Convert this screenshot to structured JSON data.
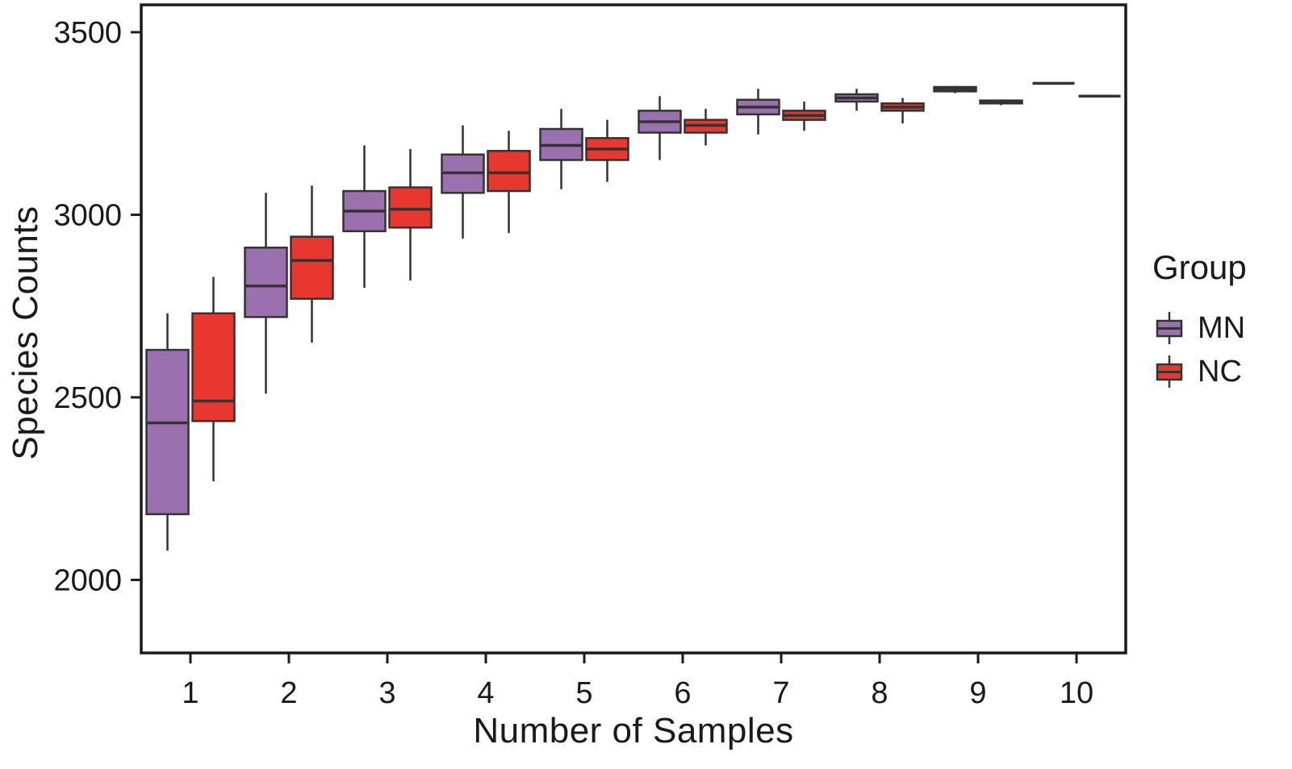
{
  "chart_data": {
    "type": "boxplot",
    "title": "",
    "xlabel": "Number of Samples",
    "ylabel": "Species Counts",
    "legend_title": "Group",
    "legend_position": "right",
    "grid": false,
    "x_categories": [
      "1",
      "2",
      "3",
      "4",
      "5",
      "6",
      "7",
      "8",
      "9",
      "10"
    ],
    "y_ticks": [
      2000,
      2500,
      3000,
      3500
    ],
    "ylim": [
      1800,
      3575
    ],
    "panel_border_color": "#1a1a1a",
    "box_stroke_color": "#333333",
    "text_color": "#1a1a1a",
    "series": [
      {
        "name": "MN",
        "color": "#9A70AE",
        "boxes": [
          {
            "x": "1",
            "low": 2080,
            "q1": 2180,
            "median": 2430,
            "q3": 2630,
            "high": 2730
          },
          {
            "x": "2",
            "low": 2510,
            "q1": 2720,
            "median": 2805,
            "q3": 2910,
            "high": 3060
          },
          {
            "x": "3",
            "low": 2800,
            "q1": 2955,
            "median": 3010,
            "q3": 3065,
            "high": 3190
          },
          {
            "x": "4",
            "low": 2935,
            "q1": 3060,
            "median": 3115,
            "q3": 3165,
            "high": 3245
          },
          {
            "x": "5",
            "low": 3070,
            "q1": 3150,
            "median": 3190,
            "q3": 3235,
            "high": 3290
          },
          {
            "x": "6",
            "low": 3150,
            "q1": 3225,
            "median": 3255,
            "q3": 3285,
            "high": 3325
          },
          {
            "x": "7",
            "low": 3220,
            "q1": 3275,
            "median": 3295,
            "q3": 3315,
            "high": 3345
          },
          {
            "x": "8",
            "low": 3285,
            "q1": 3310,
            "median": 3320,
            "q3": 3330,
            "high": 3345
          },
          {
            "x": "9",
            "low": 3333,
            "q1": 3338,
            "median": 3344,
            "q3": 3350,
            "high": 3353
          },
          {
            "x": "10",
            "low": 3360,
            "q1": 3360,
            "median": 3360,
            "q3": 3360,
            "high": 3360
          }
        ]
      },
      {
        "name": "NC",
        "color": "#E8372F",
        "boxes": [
          {
            "x": "1",
            "low": 2270,
            "q1": 2435,
            "median": 2490,
            "q3": 2730,
            "high": 2830
          },
          {
            "x": "2",
            "low": 2650,
            "q1": 2770,
            "median": 2875,
            "q3": 2940,
            "high": 3080
          },
          {
            "x": "3",
            "low": 2820,
            "q1": 2965,
            "median": 3015,
            "q3": 3075,
            "high": 3180
          },
          {
            "x": "4",
            "low": 2950,
            "q1": 3065,
            "median": 3115,
            "q3": 3175,
            "high": 3230
          },
          {
            "x": "5",
            "low": 3090,
            "q1": 3150,
            "median": 3180,
            "q3": 3210,
            "high": 3260
          },
          {
            "x": "6",
            "low": 3190,
            "q1": 3225,
            "median": 3245,
            "q3": 3260,
            "high": 3290
          },
          {
            "x": "7",
            "low": 3230,
            "q1": 3260,
            "median": 3272,
            "q3": 3285,
            "high": 3310
          },
          {
            "x": "8",
            "low": 3250,
            "q1": 3285,
            "median": 3295,
            "q3": 3305,
            "high": 3320
          },
          {
            "x": "9",
            "low": 3300,
            "q1": 3305,
            "median": 3310,
            "q3": 3313,
            "high": 3316
          },
          {
            "x": "10",
            "low": 3325,
            "q1": 3325,
            "median": 3325,
            "q3": 3325,
            "high": 3325
          }
        ]
      }
    ]
  }
}
